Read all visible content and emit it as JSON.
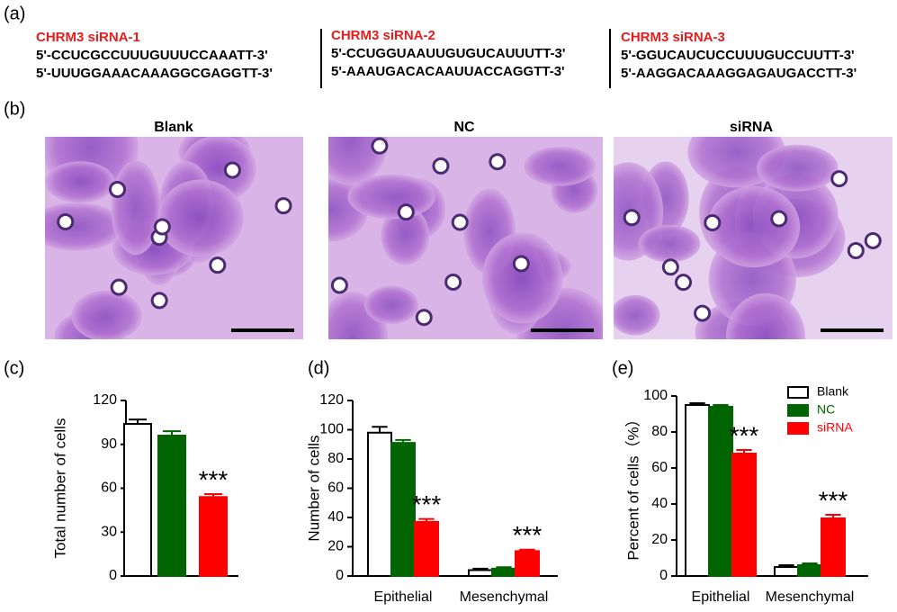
{
  "panel_labels": [
    "(a)",
    "(b)",
    "(c)",
    "(d)",
    "(e)"
  ],
  "sequences": [
    {
      "title": "CHRM3 siRNA-1",
      "sense": "5'-CCUCGCCUUUGUUUCCAAATT-3'",
      "antisense": "5'-UUUGGAAACAAAGGCGAGGTT-3'"
    },
    {
      "title": "CHRM3 siRNA-2",
      "sense": "5'-CCUGGUAAUUGUGUCAUUUTT-3'",
      "antisense": "5'-AAAUGACACAAUUACCAGGTT-3'"
    },
    {
      "title": "CHRM3 siRNA-3",
      "sense": "5'-GGUCAUCUCCUUUGUCCUUTT-3'",
      "antisense": "5'-AAGGACAAAGGAGAUGACCTT-3'"
    }
  ],
  "images": [
    {
      "title": "Blank"
    },
    {
      "title": "NC"
    },
    {
      "title": "siRNA"
    }
  ],
  "chart_data": [
    {
      "type": "bar",
      "ylabel": "Total number of cells",
      "values": [
        104,
        96,
        54
      ],
      "errors": [
        3,
        3,
        2
      ],
      "colors": [
        "#ffffff",
        "#006400",
        "#ff0000"
      ],
      "ylim": [
        0,
        120
      ],
      "yticks": [
        0,
        30,
        60,
        90,
        120
      ],
      "annotations": [
        "***"
      ]
    },
    {
      "type": "grouped-bar",
      "ylabel": "Number of cells",
      "categories": [
        "Epithelial",
        "Mesenchymal"
      ],
      "series": [
        {
          "color": "#ffffff",
          "values": [
            98,
            4
          ],
          "errors": [
            4,
            1
          ]
        },
        {
          "color": "#006400",
          "values": [
            91,
            5
          ],
          "errors": [
            2,
            1
          ]
        },
        {
          "color": "#ff0000",
          "values": [
            37,
            17
          ],
          "errors": [
            2,
            1
          ]
        }
      ],
      "ylim": [
        0,
        120
      ],
      "yticks": [
        0,
        20,
        40,
        60,
        80,
        100,
        120
      ],
      "annotations": [
        "***",
        "***"
      ]
    },
    {
      "type": "grouped-bar",
      "ylabel": "Percent of cells（%）",
      "categories": [
        "Epithelial",
        "Mesenchymal"
      ],
      "series": [
        {
          "name": "Blank",
          "color": "#ffffff",
          "text_color": "#000000",
          "values": [
            95,
            5
          ],
          "errors": [
            1,
            1
          ]
        },
        {
          "name": "NC",
          "color": "#006400",
          "text_color": "#006400",
          "values": [
            94,
            6
          ],
          "errors": [
            1,
            1
          ]
        },
        {
          "name": "siRNA",
          "color": "#ff0000",
          "text_color": "#ff0000",
          "values": [
            68,
            32
          ],
          "errors": [
            2,
            2
          ]
        }
      ],
      "ylim": [
        0,
        100
      ],
      "yticks": [
        0,
        20,
        40,
        60,
        80,
        100
      ],
      "annotations": [
        "***",
        "***"
      ]
    }
  ]
}
